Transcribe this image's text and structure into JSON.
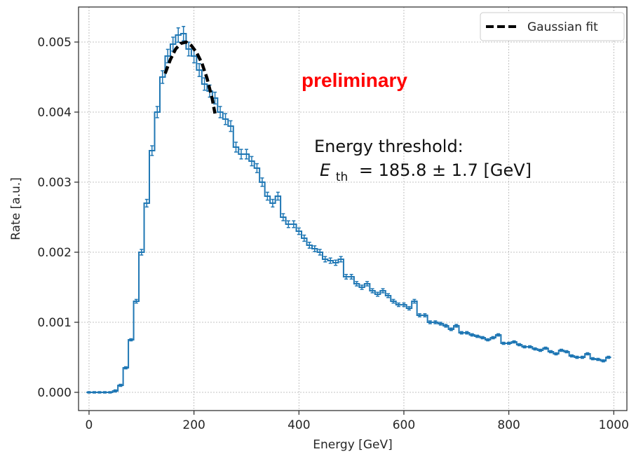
{
  "chart_data": {
    "type": "line",
    "xlabel": "Energy [GeV]",
    "ylabel": "Rate [a.u.]",
    "xlim": [
      -20,
      1025
    ],
    "ylim": [
      -0.00026,
      0.0055
    ],
    "xticks": [
      0,
      200,
      400,
      600,
      800,
      1000
    ],
    "xtick_labels": [
      "0",
      "200",
      "400",
      "600",
      "800",
      "1000"
    ],
    "yticks": [
      0.0,
      0.001,
      0.002,
      0.003,
      0.004,
      0.005
    ],
    "ytick_labels": [
      "0.000",
      "0.001",
      "0.002",
      "0.003",
      "0.004",
      "0.005"
    ],
    "grid": true,
    "legend_position": "top-right",
    "colors": {
      "histogram": "#1f77b4",
      "fit": "#000000",
      "preliminary": "#ff0000"
    },
    "annotations": {
      "preliminary": "preliminary",
      "threshold_line1": "Energy threshold:",
      "threshold_E": "E",
      "threshold_sub": "th",
      "threshold_value": "= 185.8 ± 1.7 [GeV]"
    },
    "series": [
      {
        "style": "step-with-errorbars",
        "bin_width": 10,
        "x": [
          0,
          10,
          20,
          30,
          40,
          50,
          60,
          70,
          80,
          90,
          100,
          110,
          120,
          130,
          140,
          150,
          160,
          170,
          180,
          190,
          200,
          210,
          220,
          230,
          240,
          250,
          260,
          270,
          280,
          290,
          300,
          310,
          320,
          330,
          340,
          350,
          360,
          370,
          380,
          390,
          400,
          410,
          420,
          430,
          440,
          450,
          460,
          470,
          480,
          490,
          500,
          510,
          520,
          530,
          540,
          550,
          560,
          570,
          580,
          590,
          600,
          610,
          620,
          630,
          640,
          650,
          660,
          670,
          680,
          690,
          700,
          710,
          720,
          730,
          740,
          750,
          760,
          770,
          780,
          790,
          800,
          810,
          820,
          830,
          840,
          850,
          860,
          870,
          880,
          890,
          900,
          910,
          920,
          930,
          940,
          950,
          960,
          970,
          980,
          990
        ],
        "y": [
          0.0,
          0.0,
          0.0,
          0.0,
          0.0,
          2e-05,
          0.0001,
          0.00035,
          0.00075,
          0.0013,
          0.002,
          0.0027,
          0.00345,
          0.004,
          0.0045,
          0.0048,
          0.00497,
          0.0051,
          0.00512,
          0.0049,
          0.0048,
          0.0046,
          0.0044,
          0.0043,
          0.0042,
          0.004,
          0.0039,
          0.0038,
          0.0035,
          0.0034,
          0.0034,
          0.0033,
          0.0032,
          0.003,
          0.0028,
          0.0027,
          0.0028,
          0.0025,
          0.0024,
          0.0024,
          0.0023,
          0.0022,
          0.0021,
          0.00205,
          0.002,
          0.0019,
          0.00188,
          0.00185,
          0.0019,
          0.00165,
          0.00165,
          0.00155,
          0.0015,
          0.00155,
          0.00145,
          0.0014,
          0.00145,
          0.00138,
          0.0013,
          0.00125,
          0.00125,
          0.0012,
          0.0013,
          0.0011,
          0.0011,
          0.001,
          0.001,
          0.00098,
          0.00095,
          0.0009,
          0.00095,
          0.00085,
          0.00085,
          0.00082,
          0.0008,
          0.00078,
          0.00075,
          0.00078,
          0.00082,
          0.0007,
          0.0007,
          0.00072,
          0.00068,
          0.00065,
          0.00065,
          0.00062,
          0.0006,
          0.00063,
          0.00058,
          0.00055,
          0.0006,
          0.00058,
          0.00052,
          0.0005,
          0.0005,
          0.00055,
          0.00048,
          0.00047,
          0.00045,
          0.0005
        ]
      },
      {
        "name": "Gaussian fit",
        "style": "dashed",
        "x": [
          145,
          155,
          165,
          175,
          185,
          195,
          205,
          215,
          225,
          235,
          240
        ],
        "y": [
          0.00455,
          0.00475,
          0.0049,
          0.00498,
          0.005,
          0.00495,
          0.00485,
          0.0047,
          0.00448,
          0.00418,
          0.00398
        ]
      }
    ]
  }
}
